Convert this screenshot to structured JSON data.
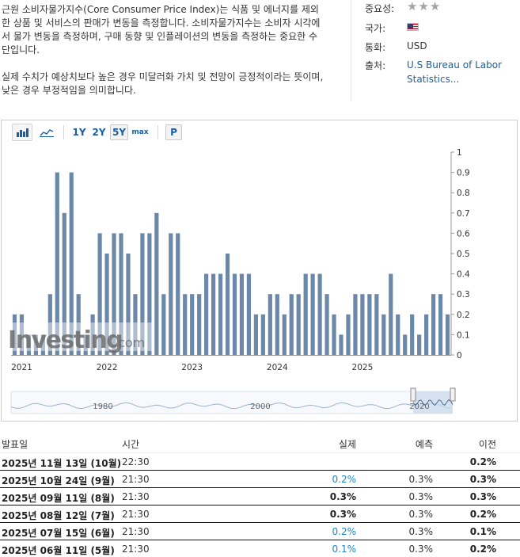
{
  "description": {
    "p1": "근원 소비자물가지수(Core Consumer Price Index)는 식품 및 에너지를 제외한 상품 및 서비스의 판매가 변동을 측정합니다. 소비자물가지수는 소비자 시각에서 물가 변동을 측정하며, 구매 동향 및 인플레이션의 변동을 측정하는 중요한 수단입니다.",
    "p2": "실제 수치가 예상치보다 높은 경우 미달러화 가치 및 전망이 긍정적이라는 뜻이며, 낮은 경우 부정적임을 의미합니다."
  },
  "meta": {
    "importance_label": "중요성:",
    "importance_stars": "★★★",
    "country_label": "국가:",
    "country_flag": "us-flag-icon",
    "currency_label": "통화:",
    "currency_value": "USD",
    "source_label": "출처:",
    "source_line1": "U.S Bureau of Labor",
    "source_line2": "Statistics..."
  },
  "toolbar": {
    "range_1y": "1Y",
    "range_2y": "2Y",
    "range_5y": "5Y",
    "range_max": "max",
    "p_button": "P",
    "bar_icon": "bar-chart-icon",
    "line_icon": "line-chart-icon"
  },
  "chart_data": {
    "type": "bar",
    "values": [
      0.2,
      0.2,
      0.1,
      0.1,
      0.1,
      0.3,
      0.9,
      0.7,
      0.9,
      0.3,
      0.1,
      0.2,
      0.6,
      0.5,
      0.6,
      0.6,
      0.5,
      0.3,
      0.6,
      0.6,
      0.7,
      0.3,
      0.6,
      0.6,
      0.3,
      0.3,
      0.3,
      0.4,
      0.4,
      0.4,
      0.5,
      0.4,
      0.4,
      0.4,
      0.2,
      0.2,
      0.3,
      0.3,
      0.2,
      0.3,
      0.3,
      0.4,
      0.4,
      0.4,
      0.3,
      0.2,
      0.1,
      0.2,
      0.3,
      0.3,
      0.3,
      0.3,
      0.2,
      0.4,
      0.2,
      0.1,
      0.2,
      0.1,
      0.2,
      0.3,
      0.3,
      0.2
    ],
    "year_labels": [
      "2021",
      "2022",
      "2023",
      "2024",
      "2025"
    ],
    "y_ticks": [
      "1",
      "0.9",
      "0.8",
      "0.7",
      "0.6",
      "0.5",
      "0.4",
      "0.3",
      "0.2",
      "0.1",
      "0"
    ],
    "ylim": [
      0,
      1
    ],
    "color": "#6b88a8",
    "watermark": "Investing.com",
    "navigator_labels": [
      "1980",
      "2000",
      "2020"
    ]
  },
  "table": {
    "headers": {
      "date": "발표일",
      "time": "시간",
      "actual": "실제",
      "forecast": "예측",
      "previous": "이전"
    },
    "rows": [
      {
        "date": "2025년 11월 13일 (10월)",
        "time": "22:30",
        "actual": "",
        "forecast": "",
        "previous": "0.2%"
      },
      {
        "date": "2025년 10월 24일 (9월)",
        "time": "21:30",
        "actual": "0.2%",
        "forecast": "0.3%",
        "previous": "0.3%"
      },
      {
        "date": "2025년 09월 11일 (8월)",
        "time": "21:30",
        "actual": "0.3%",
        "forecast": "0.3%",
        "previous": "0.3%"
      },
      {
        "date": "2025년 08월 12일 (7월)",
        "time": "21:30",
        "actual": "0.3%",
        "forecast": "0.3%",
        "previous": "0.2%"
      },
      {
        "date": "2025년 07월 15일 (6월)",
        "time": "21:30",
        "actual": "0.2%",
        "forecast": "0.3%",
        "previous": "0.1%"
      },
      {
        "date": "2025년 06월 11일 (5월)",
        "time": "21:30",
        "actual": "0.1%",
        "forecast": "0.3%",
        "previous": "0.2%"
      }
    ]
  }
}
